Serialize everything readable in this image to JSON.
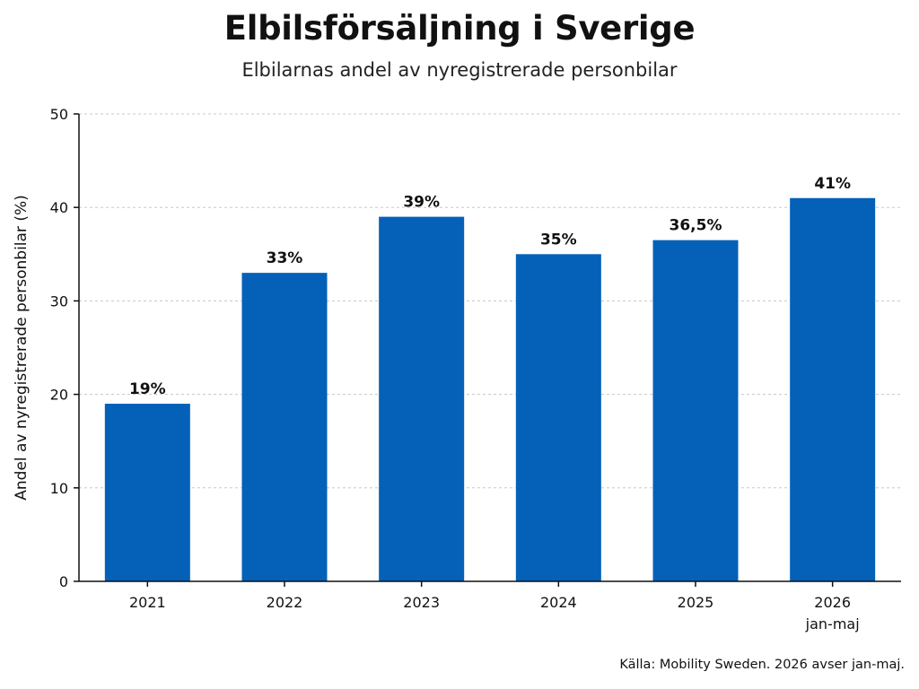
{
  "header": {
    "title": "Elbilsförsäljning i Sverige",
    "subtitle": "Elbilarnas andel av nyregistrerade personbilar"
  },
  "footer": {
    "source": "Källa: Mobility Sweden.  2026 avser jan-maj."
  },
  "colors": {
    "bar": "#0561b8",
    "grid": "#c8c8c8",
    "axis": "#111111"
  },
  "chart_data": {
    "type": "bar",
    "title": "Elbilsförsäljning i Sverige",
    "subtitle": "Elbilarnas andel av nyregistrerade personbilar",
    "xlabel": "",
    "ylabel": "Andel av nyregistrerade personbilar (%)",
    "ylim": [
      0,
      50
    ],
    "yticks": [
      0,
      10,
      20,
      30,
      40,
      50
    ],
    "grid": true,
    "categories": [
      "2021",
      "2022",
      "2023",
      "2024",
      "2025",
      "2026"
    ],
    "category_sublabels": [
      "",
      "",
      "",
      "",
      "",
      "jan-maj"
    ],
    "values": [
      19,
      33,
      39,
      35,
      36.5,
      41
    ],
    "data_labels": [
      "19%",
      "33%",
      "39%",
      "35%",
      "36,5%",
      "41%"
    ]
  }
}
